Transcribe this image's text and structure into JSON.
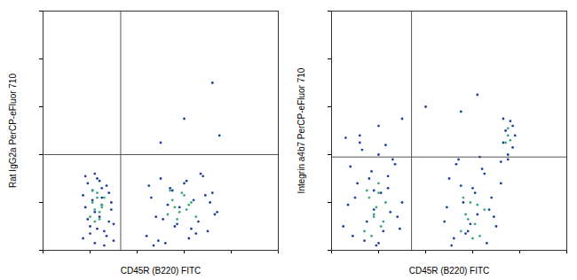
{
  "chart_data": [
    {
      "type": "scatter",
      "x_label": "CD45R (B220) FITC",
      "y_label": "Rat IgG2a PerCP-eFluor 710",
      "xlim": [
        0,
        100
      ],
      "ylim": [
        0,
        100
      ],
      "xticks": [
        0,
        20,
        40,
        60,
        80,
        100
      ],
      "yticks": [
        0,
        20,
        40,
        60,
        80,
        100
      ],
      "tick_labels": false,
      "marker": "dot",
      "quadrant_x": 33,
      "quadrant_y": 40,
      "series": [
        {
          "color": "#1f3f9e",
          "x": [
            17,
            18,
            19,
            20,
            21,
            22,
            23,
            24,
            25,
            26,
            27,
            28,
            29,
            30,
            18,
            20,
            22,
            24,
            26,
            28,
            19,
            21,
            23,
            25,
            27,
            29,
            17,
            30,
            22,
            25,
            44,
            46,
            48,
            50,
            52,
            54,
            56,
            58,
            60,
            62,
            64,
            66,
            68,
            70,
            72,
            74,
            45,
            49,
            53,
            57,
            61,
            65,
            69,
            73,
            47,
            55,
            63,
            71,
            51,
            67,
            72,
            60,
            75,
            50
          ],
          "y": [
            5,
            18,
            28,
            10,
            25,
            3,
            30,
            14,
            22,
            8,
            27,
            12,
            20,
            4,
            31,
            7,
            16,
            29,
            2,
            24,
            13,
            21,
            9,
            26,
            6,
            17,
            23,
            11,
            32,
            19,
            6,
            22,
            14,
            30,
            3,
            26,
            10,
            18,
            28,
            5,
            21,
            12,
            31,
            8,
            24,
            16,
            27,
            4,
            19,
            11,
            29,
            7,
            23,
            15,
            2,
            25,
            9,
            20,
            13,
            32,
            70,
            55,
            48,
            45
          ]
        },
        {
          "color": "#39a87a",
          "x": [
            20,
            21,
            22,
            23,
            24,
            25,
            26,
            22,
            23,
            24,
            21,
            25,
            53,
            55,
            57,
            59,
            61,
            63,
            65,
            56,
            60,
            58,
            54,
            62
          ],
          "y": [
            14,
            20,
            17,
            24,
            13,
            19,
            22,
            12,
            22,
            16,
            25,
            18,
            15,
            21,
            13,
            24,
            17,
            20,
            14,
            18,
            23,
            16,
            25,
            19
          ]
        }
      ]
    },
    {
      "type": "scatter",
      "x_label": "CD45R (B220) FITC",
      "y_label": "Integrin a4b7 PerCP-eFluor 710",
      "xlim": [
        0,
        100
      ],
      "ylim": [
        0,
        100
      ],
      "xticks": [
        0,
        20,
        40,
        60,
        80,
        100
      ],
      "yticks": [
        0,
        20,
        40,
        60,
        80,
        100
      ],
      "tick_labels": false,
      "marker": "dot",
      "quadrant_x": 34,
      "quadrant_y": 39,
      "series": [
        {
          "color": "#1f3f9e",
          "x": [
            5,
            8,
            10,
            12,
            14,
            16,
            18,
            20,
            22,
            24,
            26,
            28,
            30,
            6,
            9,
            11,
            13,
            15,
            17,
            19,
            21,
            23,
            25,
            27,
            7,
            29,
            12,
            18,
            24,
            20,
            48,
            50,
            52,
            54,
            56,
            58,
            60,
            62,
            64,
            66,
            68,
            70,
            72,
            49,
            53,
            57,
            61,
            65,
            69,
            51,
            55,
            59,
            63,
            67,
            72,
            73,
            74,
            75,
            76,
            77,
            78,
            73,
            75,
            77,
            40,
            55,
            30,
            62,
            20
          ],
          "y": [
            10,
            35,
            22,
            45,
            4,
            30,
            17,
            40,
            8,
            26,
            38,
            14,
            20,
            47,
            6,
            28,
            42,
            12,
            33,
            2,
            24,
            44,
            16,
            36,
            19,
            9,
            48,
            25,
            31,
            3,
            12,
            30,
            5,
            38,
            20,
            8,
            26,
            15,
            34,
            3,
            22,
            10,
            28,
            18,
            36,
            7,
            24,
            32,
            14,
            2,
            27,
            11,
            39,
            17,
            37,
            45,
            50,
            40,
            54,
            43,
            48,
            55,
            38,
            52,
            60,
            58,
            55,
            65,
            52
          ]
        },
        {
          "color": "#39a87a",
          "x": [
            14,
            16,
            18,
            20,
            22,
            15,
            17,
            19,
            21,
            23,
            18,
            20,
            55,
            57,
            59,
            61,
            63,
            65,
            58,
            60,
            62,
            56,
            74,
            75,
            76,
            75
          ],
          "y": [
            8,
            22,
            15,
            28,
            12,
            25,
            6,
            18,
            10,
            20,
            14,
            24,
            8,
            15,
            20,
            11,
            6,
            17,
            13,
            5,
            19,
            22,
            45,
            48,
            46,
            51
          ]
        }
      ]
    }
  ]
}
